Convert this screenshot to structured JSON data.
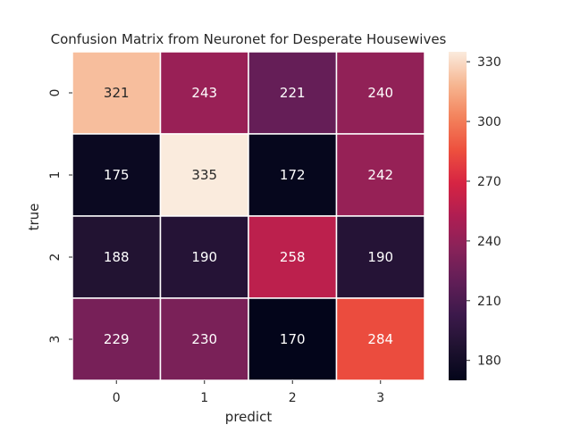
{
  "chart_data": {
    "type": "heatmap",
    "title": "Confusion Matrix from Neuronet for Desperate Housewives",
    "xlabel": "predict",
    "ylabel": "true",
    "x_categories": [
      "0",
      "1",
      "2",
      "3"
    ],
    "y_categories": [
      "0",
      "1",
      "2",
      "3"
    ],
    "values": [
      [
        321,
        243,
        221,
        240
      ],
      [
        175,
        335,
        172,
        242
      ],
      [
        188,
        190,
        258,
        190
      ],
      [
        229,
        230,
        170,
        284
      ]
    ],
    "colorbar": {
      "range": [
        170,
        335
      ],
      "ticks": [
        180,
        210,
        240,
        270,
        300,
        330
      ]
    },
    "colormap": "rocket",
    "colors": {
      "cell_border": "#ffffff",
      "annotation_light": "#ffffff",
      "annotation_dark": "#262626",
      "axis_text": "#262626"
    }
  }
}
